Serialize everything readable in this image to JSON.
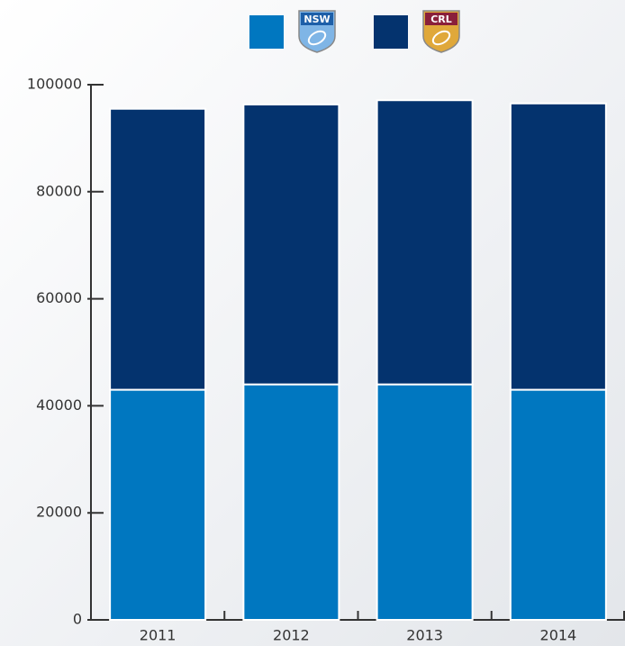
{
  "chart_data": {
    "type": "stacked_bar",
    "categories": [
      "2011",
      "2012",
      "2013",
      "2014"
    ],
    "series": [
      {
        "name": "NSW",
        "color": "#0077c0",
        "values": [
          43000,
          44000,
          44000,
          43000
        ]
      },
      {
        "name": "CRL",
        "color": "#04336e",
        "values": [
          52500,
          52300,
          53100,
          53500
        ]
      }
    ],
    "ylim": [
      0,
      100000
    ],
    "yticks": [
      0,
      20000,
      40000,
      60000,
      80000,
      100000
    ]
  }
}
